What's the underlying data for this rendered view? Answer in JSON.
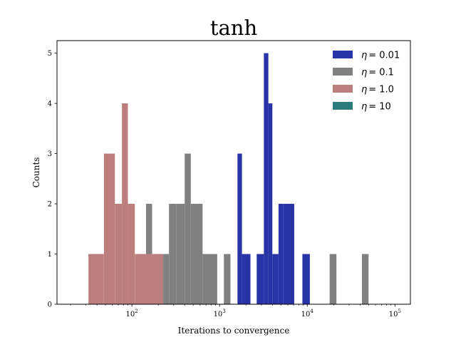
{
  "chart_data": {
    "type": "bar",
    "title": "tanh",
    "xlabel": "Iterations to convergence",
    "ylabel": "Counts",
    "xscale": "log",
    "xlim": [
      14,
      150000
    ],
    "ylim": [
      0,
      5.25
    ],
    "xticks": [
      {
        "value": 100,
        "label": "10",
        "exp": "2"
      },
      {
        "value": 1000,
        "label": "10",
        "exp": "3"
      },
      {
        "value": 10000,
        "label": "10",
        "exp": "4"
      },
      {
        "value": 100000,
        "label": "10",
        "exp": "5"
      }
    ],
    "yticks": [
      "0",
      "1",
      "2",
      "3",
      "4",
      "5"
    ],
    "legend_position": "upper-right",
    "grid": false,
    "series": [
      {
        "name": "η = 0.01",
        "legend_prefix": "η",
        "legend_value": "= 0.01",
        "color": "#2834a6",
        "bins": [
          {
            "x0": 1600,
            "x1": 1800,
            "count": 3
          },
          {
            "x0": 1800,
            "x1": 2250,
            "count": 1
          },
          {
            "x0": 2650,
            "x1": 3200,
            "count": 1
          },
          {
            "x0": 3200,
            "x1": 3600,
            "count": 5
          },
          {
            "x0": 3600,
            "x1": 4000,
            "count": 4
          },
          {
            "x0": 4000,
            "x1": 4700,
            "count": 1
          },
          {
            "x0": 4700,
            "x1": 5300,
            "count": 2
          },
          {
            "x0": 5300,
            "x1": 7100,
            "count": 2
          },
          {
            "x0": 8800,
            "x1": 10700,
            "count": 1
          }
        ]
      },
      {
        "name": "η = 0.1",
        "legend_prefix": "η",
        "legend_value": "= 0.1",
        "color": "#808080",
        "bins": [
          {
            "x0": 125,
            "x1": 145,
            "count": 1
          },
          {
            "x0": 145,
            "x1": 170,
            "count": 2
          },
          {
            "x0": 170,
            "x1": 230,
            "count": 1
          },
          {
            "x0": 230,
            "x1": 265,
            "count": 1
          },
          {
            "x0": 265,
            "x1": 320,
            "count": 2
          },
          {
            "x0": 320,
            "x1": 400,
            "count": 2
          },
          {
            "x0": 400,
            "x1": 470,
            "count": 3
          },
          {
            "x0": 470,
            "x1": 640,
            "count": 2
          },
          {
            "x0": 640,
            "x1": 940,
            "count": 1
          },
          {
            "x0": 1120,
            "x1": 1330,
            "count": 1
          },
          {
            "x0": 18000,
            "x1": 21500,
            "count": 1
          },
          {
            "x0": 42000,
            "x1": 50000,
            "count": 1
          }
        ]
      },
      {
        "name": "η = 1.0",
        "legend_prefix": "η",
        "legend_value": "= 1.0",
        "color": "#bc7d7d",
        "bins": [
          {
            "x0": 32,
            "x1": 48,
            "count": 1
          },
          {
            "x0": 48,
            "x1": 64,
            "count": 3
          },
          {
            "x0": 64,
            "x1": 77,
            "count": 2
          },
          {
            "x0": 77,
            "x1": 90,
            "count": 4
          },
          {
            "x0": 90,
            "x1": 108,
            "count": 2
          },
          {
            "x0": 108,
            "x1": 226,
            "count": 1
          }
        ]
      },
      {
        "name": "η = 10",
        "legend_prefix": "η",
        "legend_value": "= 10",
        "color": "#2b7d7d",
        "bins": []
      }
    ]
  }
}
